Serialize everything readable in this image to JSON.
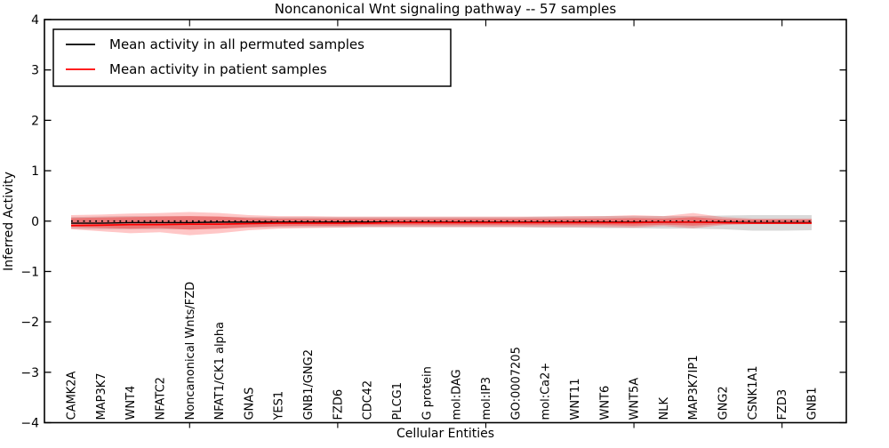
{
  "figure": {
    "title": "Noncanonical Wnt signaling pathway -- 57 samples",
    "xlabel": "Cellular Entities",
    "ylabel": "Inferred Activity"
  },
  "legend": {
    "position": "upper left",
    "entries": [
      {
        "label": "Mean activity in all permuted samples",
        "color": "#000000"
      },
      {
        "label": "Mean activity in patient samples",
        "color": "#ff0000"
      }
    ]
  },
  "chart_data": {
    "type": "line",
    "title": "Noncanonical Wnt signaling pathway -- 57 samples",
    "xlabel": "Cellular Entities",
    "ylabel": "Inferred Activity",
    "ylim": [
      -4,
      4
    ],
    "yticks": [
      -4,
      -3,
      -2,
      -1,
      0,
      1,
      2,
      3,
      4
    ],
    "grid": false,
    "legend_position": "upper left",
    "x_major_tick_indices": [
      4,
      9,
      14,
      19,
      24
    ],
    "categories": [
      "CAMK2A",
      "MAP3K7",
      "WNT4",
      "NFATC2",
      "Noncanonical Wnts/FZD",
      "NFAT1/CK1 alpha",
      "GNAS",
      "YES1",
      "GNB1/GNG2",
      "FZD6",
      "CDC42",
      "PLCG1",
      "G protein",
      "mol:DAG",
      "mol:IP3",
      "GO:0007205",
      "mol:Ca2+",
      "WNT11",
      "WNT6",
      "WNT5A",
      "NLK",
      "MAP3K7IP1",
      "GNG2",
      "CSNK1A1",
      "FZD3",
      "GNB1"
    ],
    "zero_line": {
      "style": "dotted",
      "color": "#000000",
      "y": 0
    },
    "series": [
      {
        "name": "Mean activity in all permuted samples",
        "color": "#000000",
        "width": 1.4,
        "values": [
          -0.04,
          -0.04,
          -0.03,
          -0.03,
          -0.03,
          -0.02,
          -0.02,
          -0.02,
          -0.02,
          -0.02,
          -0.02,
          -0.02,
          -0.02,
          -0.02,
          -0.02,
          -0.02,
          -0.02,
          -0.02,
          -0.02,
          -0.02,
          -0.02,
          -0.02,
          -0.02,
          -0.03,
          -0.03,
          -0.03
        ]
      },
      {
        "name": "Mean activity in patient samples",
        "color": "#ff0000",
        "width": 1.6,
        "values": [
          -0.09,
          -0.08,
          -0.07,
          -0.07,
          -0.06,
          -0.06,
          -0.05,
          -0.04,
          -0.04,
          -0.04,
          -0.04,
          -0.03,
          -0.03,
          -0.03,
          -0.03,
          -0.03,
          -0.03,
          -0.03,
          -0.03,
          -0.03,
          -0.02,
          -0.02,
          -0.03,
          -0.04,
          -0.04,
          -0.04
        ]
      }
    ],
    "bands": [
      {
        "name": "permuted-samples-range",
        "color": "#777777",
        "opacity": 0.28,
        "upper": [
          0.08,
          0.09,
          0.1,
          0.1,
          0.1,
          0.09,
          0.08,
          0.08,
          0.08,
          0.08,
          0.08,
          0.08,
          0.08,
          0.08,
          0.08,
          0.08,
          0.09,
          0.09,
          0.1,
          0.1,
          0.1,
          0.1,
          0.11,
          0.12,
          0.12,
          0.12
        ],
        "lower": [
          -0.15,
          -0.16,
          -0.16,
          -0.16,
          -0.16,
          -0.15,
          -0.13,
          -0.12,
          -0.12,
          -0.12,
          -0.12,
          -0.12,
          -0.12,
          -0.12,
          -0.12,
          -0.12,
          -0.13,
          -0.13,
          -0.14,
          -0.14,
          -0.15,
          -0.15,
          -0.16,
          -0.19,
          -0.19,
          -0.18
        ]
      },
      {
        "name": "patient-samples-range-outer",
        "color": "#ff0000",
        "opacity": 0.22,
        "upper": [
          0.12,
          0.13,
          0.15,
          0.16,
          0.18,
          0.16,
          0.12,
          0.1,
          0.1,
          0.09,
          0.09,
          0.09,
          0.09,
          0.09,
          0.09,
          0.09,
          0.09,
          0.1,
          0.1,
          0.12,
          0.1,
          0.16,
          0.08,
          0.05,
          0.05,
          0.05
        ],
        "lower": [
          -0.16,
          -0.2,
          -0.24,
          -0.22,
          -0.28,
          -0.24,
          -0.18,
          -0.15,
          -0.14,
          -0.13,
          -0.12,
          -0.12,
          -0.12,
          -0.12,
          -0.12,
          -0.12,
          -0.12,
          -0.12,
          -0.12,
          -0.13,
          -0.1,
          -0.14,
          -0.08,
          -0.06,
          -0.06,
          -0.06
        ],
        "lower2": null
      },
      {
        "name": "patient-samples-range-inner",
        "color": "#ff0000",
        "opacity": 0.3,
        "upper": [
          0.06,
          0.07,
          0.08,
          0.09,
          0.1,
          0.09,
          0.06,
          0.05,
          0.05,
          0.05,
          0.05,
          0.05,
          0.05,
          0.05,
          0.05,
          0.05,
          0.05,
          0.05,
          0.05,
          0.06,
          0.05,
          0.08,
          0.04,
          0.03,
          0.03,
          0.03
        ],
        "lower": [
          -0.11,
          -0.13,
          -0.15,
          -0.14,
          -0.17,
          -0.15,
          -0.12,
          -0.1,
          -0.09,
          -0.09,
          -0.08,
          -0.08,
          -0.08,
          -0.08,
          -0.08,
          -0.08,
          -0.08,
          -0.08,
          -0.08,
          -0.09,
          -0.07,
          -0.09,
          -0.06,
          -0.05,
          -0.05,
          -0.05
        ]
      }
    ]
  }
}
